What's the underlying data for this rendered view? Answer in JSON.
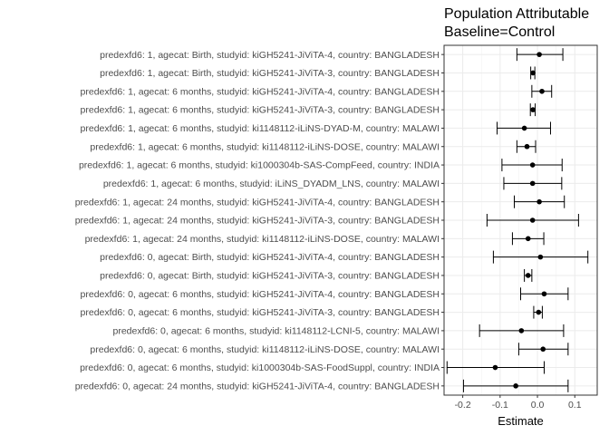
{
  "chart_data": {
    "type": "forest",
    "title": [
      "Population Attributable",
      "Baseline=Control"
    ],
    "xlabel": "Estimate",
    "ylabel": "",
    "xlim": [
      -0.25,
      0.16
    ],
    "xticks": [
      -0.2,
      -0.1,
      0.0,
      0.1
    ],
    "xtick_labels": [
      "-0.2",
      "-0.1",
      "0.0",
      "0.1"
    ],
    "grid": true,
    "colors": {
      "panel_bg": "#ffffff",
      "grid": "#ebebeb",
      "border": "#333333",
      "marks": "#000000"
    },
    "rows": [
      {
        "label": "predexfd6: 1, agecat: Birth, studyid: kiGH5241-JiViTA-4, country: BANGLADESH",
        "estimate": 0.005,
        "lower": -0.055,
        "upper": 0.068
      },
      {
        "label": "predexfd6: 1, agecat: Birth, studyid: kiGH5241-JiViTA-3, country: BANGLADESH",
        "estimate": -0.012,
        "lower": -0.018,
        "upper": -0.007
      },
      {
        "label": "predexfd6: 1, agecat: 6 months, studyid: kiGH5241-JiViTA-4, country: BANGLADESH",
        "estimate": 0.012,
        "lower": -0.015,
        "upper": 0.038
      },
      {
        "label": "predexfd6: 1, agecat: 6 months, studyid: kiGH5241-JiViTA-3, country: BANGLADESH",
        "estimate": -0.012,
        "lower": -0.019,
        "upper": -0.006
      },
      {
        "label": "predexfd6: 1, agecat: 6 months, studyid: ki1148112-iLiNS-DYAD-M, country: MALAWI",
        "estimate": -0.035,
        "lower": -0.108,
        "upper": 0.035
      },
      {
        "label": "predexfd6: 1, agecat: 6 months, studyid: ki1148112-iLiNS-DOSE, country: MALAWI",
        "estimate": -0.028,
        "lower": -0.055,
        "upper": -0.005
      },
      {
        "label": "predexfd6: 1, agecat: 6 months, studyid: ki1000304b-SAS-CompFeed, country: INDIA",
        "estimate": -0.013,
        "lower": -0.095,
        "upper": 0.066
      },
      {
        "label": "predexfd6: 1, agecat: 6 months, studyid: iLiNS_DYADM_LNS, country: MALAWI",
        "estimate": -0.013,
        "lower": -0.09,
        "upper": 0.065
      },
      {
        "label": "predexfd6: 1, agecat: 24 months, studyid: kiGH5241-JiViTA-4, country: BANGLADESH",
        "estimate": 0.005,
        "lower": -0.062,
        "upper": 0.072
      },
      {
        "label": "predexfd6: 1, agecat: 24 months, studyid: kiGH5241-JiViTA-3, country: BANGLADESH",
        "estimate": -0.013,
        "lower": -0.135,
        "upper": 0.11
      },
      {
        "label": "predexfd6: 1, agecat: 24 months, studyid: ki1148112-iLiNS-DOSE, country: MALAWI",
        "estimate": -0.025,
        "lower": -0.067,
        "upper": 0.017
      },
      {
        "label": "predexfd6: 0, agecat: Birth, studyid: kiGH5241-JiViTA-4, country: BANGLADESH",
        "estimate": 0.008,
        "lower": -0.118,
        "upper": 0.135
      },
      {
        "label": "predexfd6: 0, agecat: Birth, studyid: kiGH5241-JiViTA-3, country: BANGLADESH",
        "estimate": -0.025,
        "lower": -0.035,
        "upper": -0.015
      },
      {
        "label": "predexfd6: 0, agecat: 6 months, studyid: kiGH5241-JiViTA-4, country: BANGLADESH",
        "estimate": 0.018,
        "lower": -0.045,
        "upper": 0.082
      },
      {
        "label": "predexfd6: 0, agecat: 6 months, studyid: kiGH5241-JiViTA-3, country: BANGLADESH",
        "estimate": 0.003,
        "lower": -0.01,
        "upper": 0.013
      },
      {
        "label": "predexfd6: 0, agecat: 6 months, studyid: ki1148112-LCNI-5, country: MALAWI",
        "estimate": -0.043,
        "lower": -0.155,
        "upper": 0.07
      },
      {
        "label": "predexfd6: 0, agecat: 6 months, studyid: ki1148112-iLiNS-DOSE, country: MALAWI",
        "estimate": 0.015,
        "lower": -0.05,
        "upper": 0.082
      },
      {
        "label": "predexfd6: 0, agecat: 6 months, studyid: ki1000304b-SAS-FoodSuppl, country: INDIA",
        "estimate": -0.113,
        "lower": -0.242,
        "upper": 0.018
      },
      {
        "label": "predexfd6: 0, agecat: 24 months, studyid: kiGH5241-JiViTA-4, country: BANGLADESH",
        "estimate": -0.058,
        "lower": -0.198,
        "upper": 0.082
      }
    ]
  }
}
